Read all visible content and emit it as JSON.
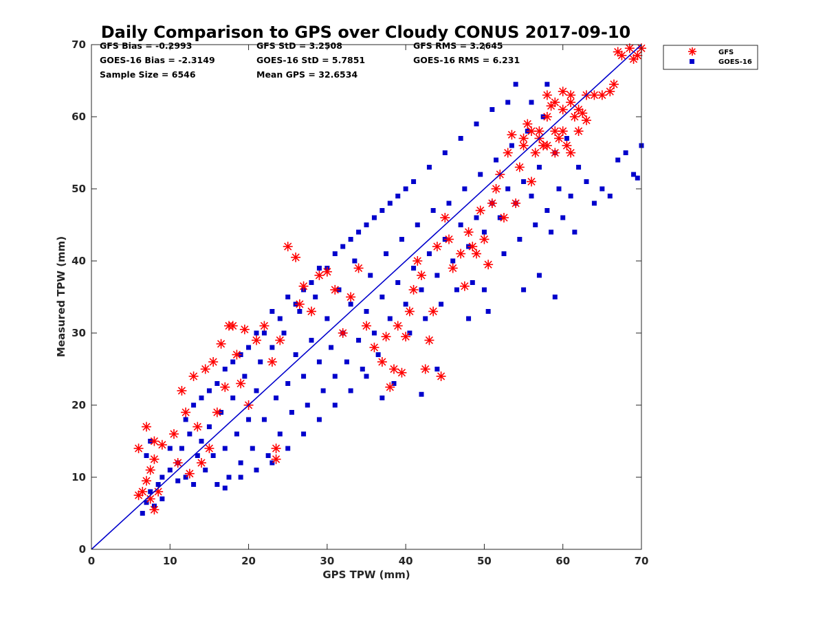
{
  "chart_data": {
    "type": "scatter",
    "title": "Daily Comparison to GPS over Cloudy CONUS 2017-09-10",
    "xlabel": "GPS TPW (mm)",
    "ylabel": "Measured TPW (mm)",
    "xlim": [
      0,
      70
    ],
    "ylim": [
      0,
      70
    ],
    "xticks": [
      "0",
      "10",
      "20",
      "30",
      "40",
      "50",
      "60",
      "70"
    ],
    "yticks": [
      "0",
      "10",
      "20",
      "30",
      "40",
      "50",
      "60",
      "70"
    ],
    "grid": false,
    "legend_position": "outside-top-right",
    "one_to_one_line": {
      "x": [
        0,
        70
      ],
      "y": [
        0,
        70
      ],
      "color": "#0000cc"
    },
    "statistics": [
      {
        "text": "GFS Bias = -0.2993"
      },
      {
        "text": "GFS StD = 3.2508"
      },
      {
        "text": "GFS RMS = 3.2645"
      },
      {
        "text": "GOES-16 Bias = -2.3149"
      },
      {
        "text": "GOES-16 StD = 5.7851"
      },
      {
        "text": "GOES-16 RMS = 6.231"
      },
      {
        "text": "Sample Size = 6546"
      },
      {
        "text": "Mean GPS = 32.6534"
      }
    ],
    "series": [
      {
        "name": "GFS",
        "marker": "asterisk",
        "color": "#ff0000",
        "points": [
          [
            6,
            7.5
          ],
          [
            6.5,
            8
          ],
          [
            7,
            9.5
          ],
          [
            7.5,
            7
          ],
          [
            8,
            5.5
          ],
          [
            8,
            15
          ],
          [
            7,
            17
          ],
          [
            6,
            14
          ],
          [
            7.5,
            11
          ],
          [
            8.5,
            8
          ],
          [
            9,
            14.5
          ],
          [
            8,
            12.5
          ],
          [
            10.5,
            16
          ],
          [
            11,
            12
          ],
          [
            11.5,
            22
          ],
          [
            12,
            19
          ],
          [
            12.5,
            10.5
          ],
          [
            13,
            24
          ],
          [
            13.5,
            17
          ],
          [
            14,
            12
          ],
          [
            14.5,
            25
          ],
          [
            15,
            14
          ],
          [
            15.5,
            26
          ],
          [
            16,
            19
          ],
          [
            16.5,
            28.5
          ],
          [
            17,
            22.5
          ],
          [
            17.5,
            31
          ],
          [
            18,
            31
          ],
          [
            18.5,
            27
          ],
          [
            19,
            23
          ],
          [
            19.5,
            30.5
          ],
          [
            20,
            20
          ],
          [
            21,
            29
          ],
          [
            22,
            31
          ],
          [
            23,
            26
          ],
          [
            23.5,
            12.5
          ],
          [
            23.5,
            14
          ],
          [
            24,
            29
          ],
          [
            25,
            42
          ],
          [
            26,
            40.5
          ],
          [
            26.5,
            34
          ],
          [
            27,
            36.5
          ],
          [
            28,
            33
          ],
          [
            29,
            38
          ],
          [
            30,
            38.5
          ],
          [
            31,
            36
          ],
          [
            32,
            30
          ],
          [
            33,
            35
          ],
          [
            34,
            39
          ],
          [
            35,
            31
          ],
          [
            36,
            28
          ],
          [
            37,
            26
          ],
          [
            37.5,
            29.5
          ],
          [
            38,
            22.5
          ],
          [
            38.5,
            25
          ],
          [
            39,
            31
          ],
          [
            39.5,
            24.5
          ],
          [
            40,
            29.5
          ],
          [
            40.5,
            33
          ],
          [
            41,
            36
          ],
          [
            41.5,
            40
          ],
          [
            42,
            38
          ],
          [
            42.5,
            25
          ],
          [
            43,
            29
          ],
          [
            43.5,
            33
          ],
          [
            44,
            42
          ],
          [
            44.5,
            24
          ],
          [
            45,
            46
          ],
          [
            45.5,
            43
          ],
          [
            46,
            39
          ],
          [
            47,
            41
          ],
          [
            47.5,
            36.5
          ],
          [
            48,
            44
          ],
          [
            48.5,
            42
          ],
          [
            49,
            41
          ],
          [
            49.5,
            47
          ],
          [
            50,
            43
          ],
          [
            50.5,
            39.5
          ],
          [
            51,
            48
          ],
          [
            51.5,
            50
          ],
          [
            52,
            52
          ],
          [
            52.5,
            46
          ],
          [
            53,
            55
          ],
          [
            53.5,
            57.5
          ],
          [
            54,
            48
          ],
          [
            54.5,
            53
          ],
          [
            55,
            56
          ],
          [
            55.5,
            59
          ],
          [
            56,
            51
          ],
          [
            56.5,
            55
          ],
          [
            57,
            58
          ],
          [
            57.5,
            56
          ],
          [
            58,
            60
          ],
          [
            58.5,
            61.5
          ],
          [
            59,
            55
          ],
          [
            59.5,
            57
          ],
          [
            60,
            58
          ],
          [
            60.5,
            56
          ],
          [
            61,
            62
          ],
          [
            61.5,
            60
          ],
          [
            62,
            58
          ],
          [
            62.5,
            60.5
          ],
          [
            63,
            59.5
          ],
          [
            64,
            63
          ],
          [
            65,
            63
          ],
          [
            66,
            63.5
          ],
          [
            66.5,
            64.5
          ],
          [
            67,
            69
          ],
          [
            67.5,
            68.5
          ],
          [
            68.5,
            69.5
          ],
          [
            69,
            68
          ],
          [
            69.5,
            68.5
          ],
          [
            70,
            69.5
          ],
          [
            58,
            63
          ],
          [
            59,
            62
          ],
          [
            60,
            63.5
          ],
          [
            61,
            55
          ],
          [
            55,
            57
          ],
          [
            56,
            58
          ],
          [
            57,
            57
          ],
          [
            58,
            56
          ],
          [
            59,
            58
          ],
          [
            60,
            61
          ],
          [
            61,
            63
          ],
          [
            62,
            61
          ],
          [
            63,
            63
          ]
        ]
      },
      {
        "name": "GOES-16",
        "marker": "square",
        "color": "#0000cc",
        "points": [
          [
            6.5,
            5
          ],
          [
            7,
            6.5
          ],
          [
            7.5,
            8
          ],
          [
            8,
            6
          ],
          [
            7,
            13
          ],
          [
            7.5,
            15
          ],
          [
            8.5,
            9
          ],
          [
            9,
            7
          ],
          [
            11,
            12
          ],
          [
            11.5,
            14
          ],
          [
            12,
            10
          ],
          [
            12.5,
            16
          ],
          [
            13,
            9
          ],
          [
            13.5,
            13
          ],
          [
            14,
            15
          ],
          [
            14.5,
            11
          ],
          [
            15,
            17
          ],
          [
            15.5,
            13
          ],
          [
            16,
            9
          ],
          [
            16.5,
            19
          ],
          [
            17,
            14
          ],
          [
            17.5,
            10
          ],
          [
            18,
            21
          ],
          [
            18.5,
            16
          ],
          [
            19,
            12
          ],
          [
            19.5,
            24
          ],
          [
            20,
            18
          ],
          [
            20.5,
            14
          ],
          [
            21,
            22
          ],
          [
            21.5,
            26
          ],
          [
            22,
            18
          ],
          [
            22.5,
            13
          ],
          [
            23,
            28
          ],
          [
            23.5,
            21
          ],
          [
            24,
            16
          ],
          [
            24.5,
            30
          ],
          [
            25,
            23
          ],
          [
            25.5,
            19
          ],
          [
            26,
            27
          ],
          [
            26.5,
            33
          ],
          [
            27,
            24
          ],
          [
            27.5,
            20
          ],
          [
            28,
            29
          ],
          [
            28.5,
            35
          ],
          [
            29,
            26
          ],
          [
            29.5,
            22
          ],
          [
            30,
            32
          ],
          [
            30.5,
            28
          ],
          [
            31,
            24
          ],
          [
            31.5,
            36
          ],
          [
            32,
            30
          ],
          [
            32.5,
            26
          ],
          [
            33,
            34
          ],
          [
            33.5,
            40
          ],
          [
            34,
            29
          ],
          [
            34.5,
            25
          ],
          [
            35,
            33
          ],
          [
            35.5,
            38
          ],
          [
            36,
            30
          ],
          [
            36.5,
            27
          ],
          [
            37,
            35
          ],
          [
            37.5,
            41
          ],
          [
            38,
            32
          ],
          [
            38.5,
            23
          ],
          [
            39,
            37
          ],
          [
            39.5,
            43
          ],
          [
            40,
            34
          ],
          [
            40.5,
            30
          ],
          [
            41,
            39
          ],
          [
            41.5,
            45
          ],
          [
            42,
            36
          ],
          [
            42.5,
            32
          ],
          [
            43,
            41
          ],
          [
            43.5,
            47
          ],
          [
            44,
            38
          ],
          [
            44.5,
            34
          ],
          [
            45,
            43
          ],
          [
            45.5,
            48
          ],
          [
            46,
            40
          ],
          [
            46.5,
            36
          ],
          [
            47,
            45
          ],
          [
            47.5,
            50
          ],
          [
            48,
            42
          ],
          [
            48.5,
            37
          ],
          [
            49,
            46
          ],
          [
            49.5,
            52
          ],
          [
            50,
            44
          ],
          [
            50.5,
            33
          ],
          [
            51,
            48
          ],
          [
            51.5,
            54
          ],
          [
            52,
            46
          ],
          [
            52.5,
            41
          ],
          [
            53,
            50
          ],
          [
            53.5,
            56
          ],
          [
            54,
            48
          ],
          [
            54.5,
            43
          ],
          [
            55,
            51
          ],
          [
            55.5,
            58
          ],
          [
            56,
            49
          ],
          [
            56.5,
            45
          ],
          [
            57,
            53
          ],
          [
            57.5,
            60
          ],
          [
            58,
            47
          ],
          [
            58.5,
            44
          ],
          [
            59,
            55
          ],
          [
            59.5,
            50
          ],
          [
            60,
            46
          ],
          [
            60.5,
            57
          ],
          [
            61,
            49
          ],
          [
            61.5,
            44
          ],
          [
            62,
            53
          ],
          [
            63,
            51
          ],
          [
            64,
            48
          ],
          [
            65,
            50
          ],
          [
            66,
            49
          ],
          [
            67,
            54
          ],
          [
            68,
            55
          ],
          [
            69,
            52
          ],
          [
            70,
            56
          ],
          [
            69.5,
            51.5
          ],
          [
            54,
            64.5
          ],
          [
            58,
            64.5
          ],
          [
            56,
            62
          ],
          [
            55,
            36
          ],
          [
            57,
            38
          ],
          [
            59,
            35
          ],
          [
            50,
            36
          ],
          [
            48,
            32
          ],
          [
            44,
            25
          ],
          [
            42,
            21.5
          ],
          [
            37,
            21
          ],
          [
            10,
            14
          ],
          [
            12,
            18
          ],
          [
            14,
            21
          ],
          [
            16,
            23
          ],
          [
            18,
            26
          ],
          [
            20,
            28
          ],
          [
            22,
            30
          ],
          [
            24,
            32
          ],
          [
            26,
            34
          ],
          [
            28,
            37
          ],
          [
            30,
            39
          ],
          [
            32,
            42
          ],
          [
            34,
            44
          ],
          [
            36,
            46
          ],
          [
            38,
            48
          ],
          [
            40,
            50
          ],
          [
            17,
            8.5
          ],
          [
            19,
            10
          ],
          [
            21,
            11
          ],
          [
            23,
            12
          ],
          [
            25,
            14
          ],
          [
            27,
            16
          ],
          [
            29,
            18
          ],
          [
            31,
            20
          ],
          [
            33,
            22
          ],
          [
            35,
            24
          ],
          [
            9,
            10
          ],
          [
            10,
            11
          ],
          [
            11,
            9.5
          ],
          [
            13,
            20
          ],
          [
            15,
            22
          ],
          [
            17,
            25
          ],
          [
            19,
            27
          ],
          [
            21,
            30
          ],
          [
            23,
            33
          ],
          [
            25,
            35
          ],
          [
            27,
            36
          ],
          [
            29,
            39
          ],
          [
            31,
            41
          ],
          [
            33,
            43
          ],
          [
            35,
            45
          ],
          [
            37,
            47
          ],
          [
            39,
            49
          ],
          [
            41,
            51
          ],
          [
            43,
            53
          ],
          [
            45,
            55
          ],
          [
            47,
            57
          ],
          [
            49,
            59
          ],
          [
            51,
            61
          ],
          [
            53,
            62
          ]
        ]
      }
    ]
  }
}
